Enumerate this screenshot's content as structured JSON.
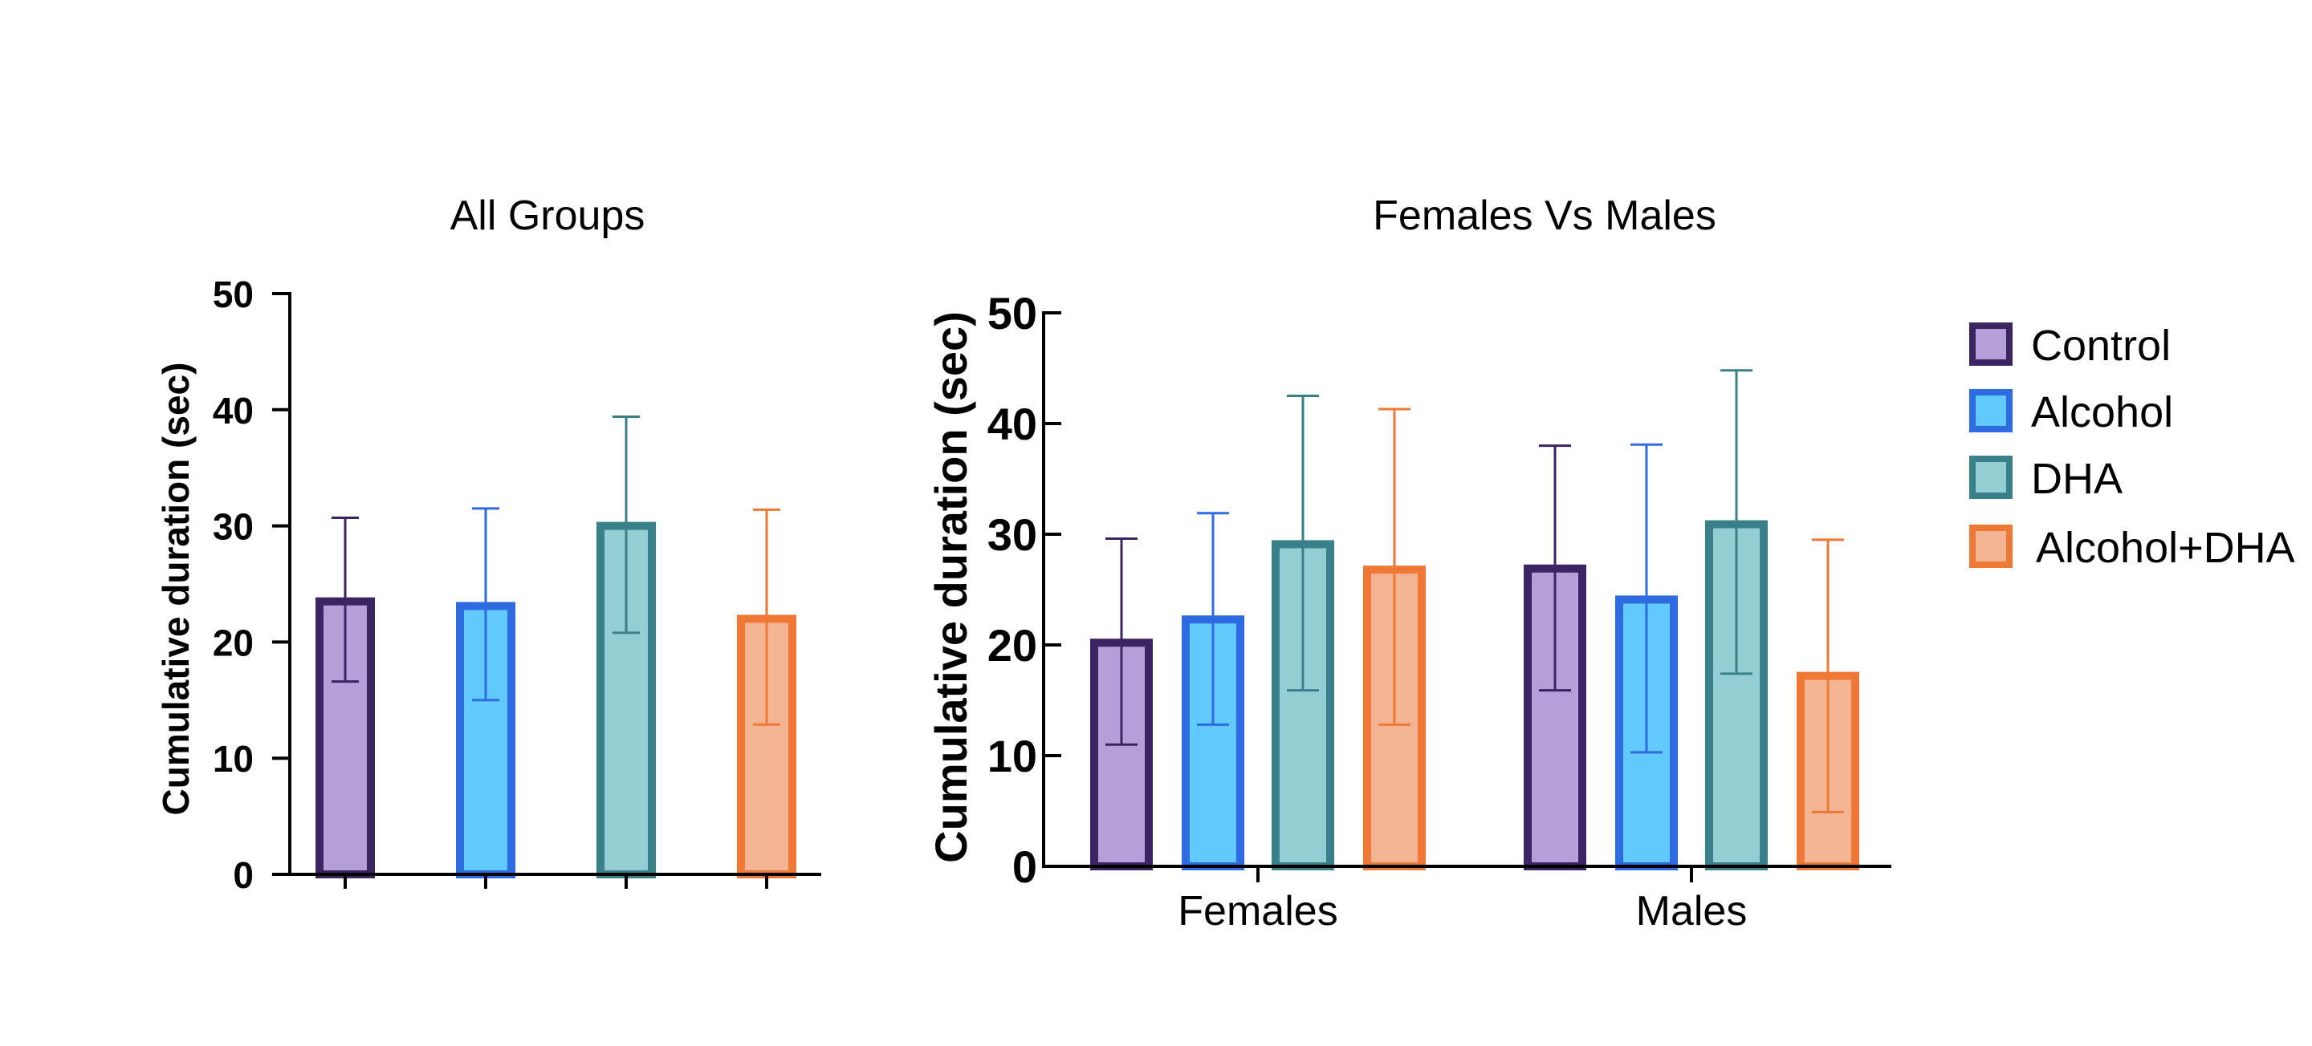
{
  "colors": {
    "Control": {
      "stroke": "#3a2461",
      "fill": "#b3a0d8"
    },
    "Alcohol": {
      "stroke": "#2f6be0",
      "fill": "#61c9fb"
    },
    "DHA": {
      "stroke": "#3a8089",
      "fill": "#93ced5"
    },
    "Alcohol+DHA": {
      "stroke": "#ee7835",
      "fill": "#f4b494"
    }
  },
  "chart_data": [
    {
      "type": "bar",
      "title": "All Groups",
      "ylabel": "Cumulative duration (sec)",
      "xlabel": "",
      "ylim": [
        0,
        50
      ],
      "yticks": [
        "0",
        "10",
        "20",
        "30",
        "40",
        "50"
      ],
      "grid": false,
      "categories": [
        "Control",
        "Alcohol",
        "DHA",
        "Alcohol+DHA"
      ],
      "values": [
        23.5,
        23.1,
        30.0,
        22.0
      ],
      "error_low": [
        16.6,
        15.0,
        20.8,
        12.9
      ],
      "error_high": [
        30.7,
        31.5,
        39.4,
        31.4
      ]
    },
    {
      "type": "bar",
      "title": "Females Vs Males",
      "ylabel": "Cumulative duration (sec)",
      "xlabel": "",
      "ylim": [
        0,
        50
      ],
      "yticks": [
        "0",
        "10",
        "20",
        "30",
        "40",
        "50"
      ],
      "grid": false,
      "categories": [
        "Females",
        "Males"
      ],
      "legend_position": "right",
      "series": [
        {
          "name": "Control",
          "values": [
            20.2,
            26.9
          ],
          "error_low": [
            11.0,
            15.9
          ],
          "error_high": [
            29.6,
            38.0
          ]
        },
        {
          "name": "Alcohol",
          "values": [
            22.3,
            24.1
          ],
          "error_low": [
            12.8,
            10.3
          ],
          "error_high": [
            31.9,
            38.1
          ]
        },
        {
          "name": "DHA",
          "values": [
            29.1,
            30.9
          ],
          "error_low": [
            15.9,
            17.4
          ],
          "error_high": [
            42.5,
            44.8
          ]
        },
        {
          "name": "Alcohol+DHA",
          "values": [
            26.8,
            17.2
          ],
          "error_low": [
            12.8,
            4.9
          ],
          "error_high": [
            41.3,
            29.5
          ]
        }
      ]
    }
  ]
}
